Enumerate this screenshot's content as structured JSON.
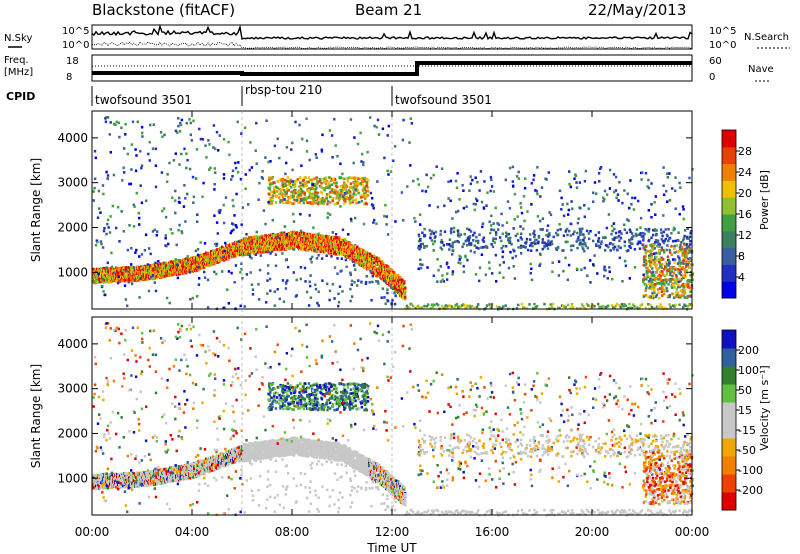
{
  "header": {
    "title_left": "Blackstone (fitACF)",
    "title_center": "Beam 21",
    "title_right": "22/May/2013"
  },
  "noise_panel": {
    "left_label": "N.Sky",
    "right_label": "N.Search",
    "yticks_left": [
      "10^5",
      "10^0"
    ],
    "yticks_right": [
      "10^5",
      "10^0"
    ]
  },
  "freq_panel": {
    "left_label_1": "Freq.",
    "left_label_2": "[MHz]",
    "right_label": "Nave",
    "yticks_left": [
      "18",
      "8"
    ],
    "yticks_right": [
      "60",
      "0"
    ]
  },
  "cpid_panel": {
    "label": "CPID",
    "segments": [
      {
        "name": "twofsound 3501",
        "start_hour": 0,
        "end_hour": 6
      },
      {
        "name": "rbsp-tou 210",
        "start_hour": 6,
        "end_hour": 12
      },
      {
        "name": "twofsound 3501",
        "start_hour": 12,
        "end_hour": 24
      }
    ]
  },
  "colors": {
    "power": [
      "#0000e6",
      "#2030c0",
      "#3a5fa0",
      "#3c8060",
      "#40a040",
      "#90c030",
      "#f0c000",
      "#f08000",
      "#e84000",
      "#e00000"
    ],
    "velocity": [
      "#e00000",
      "#f04000",
      "#f08000",
      "#f0a800",
      "#c8c8c8",
      "#c8c8c8",
      "#60c040",
      "#308030",
      "#3060a0",
      "#1010c0"
    ]
  },
  "chart_data": [
    {
      "type": "heatmap",
      "title": "",
      "xlabel": "",
      "ylabel": "Slant Range [km]",
      "xlim": [
        0,
        24
      ],
      "ylim": [
        180,
        4600
      ],
      "x_ticks": [],
      "y_ticks": [
        "1000",
        "2000",
        "3000",
        "4000"
      ],
      "colorbar": {
        "label": "Power [dB]",
        "ticks": [
          "28",
          "24",
          "20",
          "16",
          "12",
          "8",
          "4"
        ],
        "range": [
          0,
          32
        ]
      },
      "features": [
        {
          "name": "main echo band",
          "points": [
            [
              0,
              950
            ],
            [
              2,
              1000
            ],
            [
              4,
              1200
            ],
            [
              6,
              1600
            ],
            [
              8,
              1750
            ],
            [
              10,
              1600
            ],
            [
              11.5,
              1100
            ],
            [
              12.5,
              600
            ]
          ]
        }
      ]
    },
    {
      "type": "heatmap",
      "title": "",
      "xlabel": "Time UT",
      "ylabel": "Slant Range [km]",
      "xlim": [
        0,
        24
      ],
      "ylim": [
        180,
        4600
      ],
      "x_ticks": [
        "00:00",
        "04:00",
        "08:00",
        "12:00",
        "16:00",
        "20:00",
        "00:00"
      ],
      "y_ticks": [
        "1000",
        "2000",
        "3000",
        "4000"
      ],
      "colorbar": {
        "label": "Velocity [m s⁻¹]",
        "ticks": [
          "200",
          "100",
          "50",
          "15",
          "-15",
          "-50",
          "-100",
          "-200"
        ]
      }
    }
  ]
}
